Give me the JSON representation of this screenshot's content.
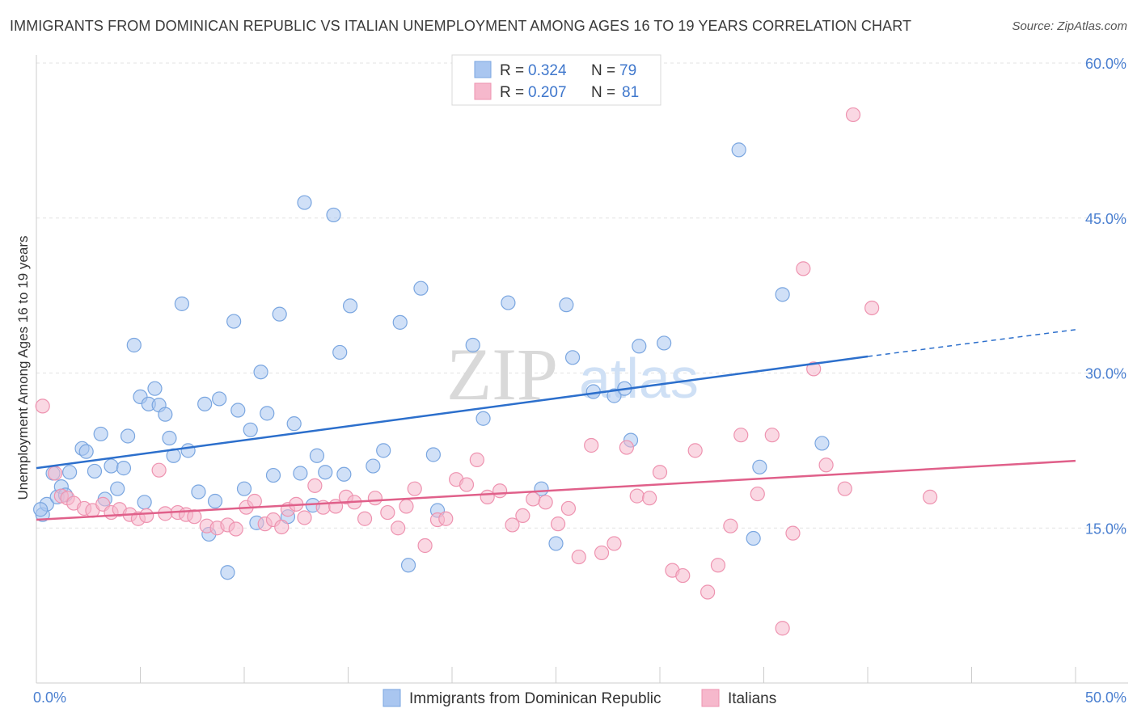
{
  "header": {
    "title": "IMMIGRANTS FROM DOMINICAN REPUBLIC VS ITALIAN UNEMPLOYMENT AMONG AGES 16 TO 19 YEARS CORRELATION CHART",
    "source": "Source: ZipAtlas.com"
  },
  "watermark": {
    "zip": "ZIP",
    "atlas": "atlas"
  },
  "legend": {
    "rows": [
      {
        "r_label": "R =",
        "r_value": "0.324",
        "n_label": "N =",
        "n_value": "79",
        "color": "#a9c6f0"
      },
      {
        "r_label": "R =",
        "r_value": "0.207",
        "n_label": "N =",
        "n_value": "81",
        "color": "#f6b8cc"
      }
    ]
  },
  "chart_data": {
    "type": "scatter",
    "title": "IMMIGRANTS FROM DOMINICAN REPUBLIC VS ITALIAN UNEMPLOYMENT AMONG AGES 16 TO 19 YEARS CORRELATION CHART",
    "xlabel": "",
    "ylabel": "Unemployment Among Ages 16 to 19 years",
    "xlim": [
      0,
      50
    ],
    "ylim": [
      0,
      60
    ],
    "x_tick_labels": [
      "0.0%",
      "50.0%"
    ],
    "y_ticks": [
      15,
      30,
      45,
      60
    ],
    "y_tick_labels": [
      "15.0%",
      "30.0%",
      "45.0%",
      "60.0%"
    ],
    "grid": true,
    "legend_position": "top-center",
    "series": [
      {
        "name": "Immigrants from Dominican Republic",
        "color": "#a9c6f0",
        "stroke": "#7aa6e0",
        "trend_color": "#2c6fcc",
        "trend": {
          "x0": 0,
          "y0": 20.8,
          "x1": 40,
          "y1": 31.6,
          "dashed_to_x": 50,
          "dashed_to_y": 34.2
        },
        "points": [
          [
            0.3,
            16.3
          ],
          [
            0.5,
            17.3
          ],
          [
            0.8,
            20.3
          ],
          [
            1.0,
            18.0
          ],
          [
            1.2,
            19.0
          ],
          [
            1.4,
            18.2
          ],
          [
            2.2,
            22.7
          ],
          [
            2.4,
            22.4
          ],
          [
            2.8,
            20.5
          ],
          [
            3.1,
            24.1
          ],
          [
            3.3,
            17.8
          ],
          [
            3.6,
            21.0
          ],
          [
            3.9,
            18.8
          ],
          [
            4.2,
            20.8
          ],
          [
            4.4,
            23.9
          ],
          [
            4.7,
            32.7
          ],
          [
            5.0,
            27.7
          ],
          [
            5.2,
            17.5
          ],
          [
            5.4,
            27.0
          ],
          [
            5.7,
            28.5
          ],
          [
            5.9,
            26.9
          ],
          [
            6.2,
            26.0
          ],
          [
            6.4,
            23.7
          ],
          [
            6.6,
            22.0
          ],
          [
            7.0,
            36.7
          ],
          [
            7.3,
            22.5
          ],
          [
            7.8,
            18.5
          ],
          [
            8.1,
            27.0
          ],
          [
            8.3,
            14.4
          ],
          [
            8.6,
            17.6
          ],
          [
            8.8,
            27.5
          ],
          [
            9.2,
            10.7
          ],
          [
            9.5,
            35.0
          ],
          [
            9.7,
            26.4
          ],
          [
            10.0,
            18.8
          ],
          [
            10.3,
            24.5
          ],
          [
            10.6,
            15.5
          ],
          [
            10.8,
            30.1
          ],
          [
            11.1,
            26.1
          ],
          [
            11.4,
            20.1
          ],
          [
            11.7,
            35.7
          ],
          [
            12.1,
            16.1
          ],
          [
            12.4,
            25.1
          ],
          [
            12.7,
            20.3
          ],
          [
            12.9,
            46.5
          ],
          [
            13.3,
            17.2
          ],
          [
            13.5,
            22.0
          ],
          [
            13.9,
            20.4
          ],
          [
            14.3,
            45.3
          ],
          [
            14.6,
            32.0
          ],
          [
            14.8,
            20.2
          ],
          [
            15.1,
            36.5
          ],
          [
            16.2,
            21.0
          ],
          [
            16.7,
            22.5
          ],
          [
            17.5,
            34.9
          ],
          [
            17.9,
            11.4
          ],
          [
            18.5,
            38.2
          ],
          [
            19.1,
            22.1
          ],
          [
            19.3,
            16.7
          ],
          [
            21.0,
            32.7
          ],
          [
            21.5,
            25.6
          ],
          [
            22.7,
            36.8
          ],
          [
            24.3,
            18.8
          ],
          [
            25.0,
            13.5
          ],
          [
            25.5,
            36.6
          ],
          [
            25.8,
            31.5
          ],
          [
            26.8,
            28.2
          ],
          [
            27.8,
            27.8
          ],
          [
            28.3,
            28.5
          ],
          [
            28.6,
            23.5
          ],
          [
            29.0,
            32.6
          ],
          [
            30.2,
            32.9
          ],
          [
            33.8,
            51.6
          ],
          [
            34.5,
            14.0
          ],
          [
            34.8,
            20.9
          ],
          [
            35.9,
            37.6
          ],
          [
            37.8,
            23.2
          ],
          [
            0.2,
            16.8
          ],
          [
            1.6,
            20.4
          ]
        ]
      },
      {
        "name": "Italians",
        "color": "#f6b8cc",
        "stroke": "#ee93b0",
        "trend_color": "#e0608a",
        "trend": {
          "x0": 0,
          "y0": 15.8,
          "x1": 50,
          "y1": 21.5
        },
        "points": [
          [
            0.3,
            26.8
          ],
          [
            0.9,
            20.3
          ],
          [
            1.2,
            18.1
          ],
          [
            1.5,
            17.9
          ],
          [
            1.8,
            17.4
          ],
          [
            2.3,
            16.9
          ],
          [
            2.7,
            16.7
          ],
          [
            3.2,
            17.3
          ],
          [
            3.6,
            16.5
          ],
          [
            4.0,
            16.8
          ],
          [
            4.5,
            16.3
          ],
          [
            4.9,
            15.9
          ],
          [
            5.3,
            16.2
          ],
          [
            5.9,
            20.6
          ],
          [
            6.2,
            16.4
          ],
          [
            6.8,
            16.5
          ],
          [
            7.2,
            16.3
          ],
          [
            7.6,
            16.1
          ],
          [
            8.2,
            15.2
          ],
          [
            8.7,
            15.0
          ],
          [
            9.2,
            15.3
          ],
          [
            9.6,
            14.9
          ],
          [
            10.1,
            17.0
          ],
          [
            10.5,
            17.6
          ],
          [
            11.0,
            15.4
          ],
          [
            11.4,
            15.8
          ],
          [
            11.8,
            15.1
          ],
          [
            12.1,
            16.8
          ],
          [
            12.5,
            17.3
          ],
          [
            12.9,
            16.0
          ],
          [
            13.4,
            19.1
          ],
          [
            13.8,
            17.0
          ],
          [
            14.4,
            17.1
          ],
          [
            14.9,
            18.0
          ],
          [
            15.3,
            17.5
          ],
          [
            15.8,
            15.9
          ],
          [
            16.3,
            17.9
          ],
          [
            16.9,
            16.5
          ],
          [
            17.4,
            15.0
          ],
          [
            17.8,
            17.1
          ],
          [
            18.2,
            18.8
          ],
          [
            18.7,
            13.3
          ],
          [
            19.3,
            15.8
          ],
          [
            19.7,
            15.9
          ],
          [
            20.2,
            19.7
          ],
          [
            20.7,
            19.2
          ],
          [
            21.2,
            21.6
          ],
          [
            21.7,
            18.0
          ],
          [
            22.3,
            18.6
          ],
          [
            22.9,
            15.3
          ],
          [
            23.4,
            16.2
          ],
          [
            23.9,
            17.8
          ],
          [
            24.5,
            17.5
          ],
          [
            25.1,
            15.4
          ],
          [
            25.6,
            16.9
          ],
          [
            26.1,
            12.2
          ],
          [
            26.7,
            23.0
          ],
          [
            27.2,
            12.6
          ],
          [
            27.8,
            13.5
          ],
          [
            28.4,
            22.8
          ],
          [
            28.9,
            18.1
          ],
          [
            29.5,
            17.9
          ],
          [
            30.0,
            20.4
          ],
          [
            30.6,
            10.9
          ],
          [
            31.1,
            10.4
          ],
          [
            31.7,
            22.5
          ],
          [
            32.3,
            8.8
          ],
          [
            32.8,
            11.4
          ],
          [
            33.4,
            15.2
          ],
          [
            33.9,
            24.0
          ],
          [
            34.7,
            18.3
          ],
          [
            35.4,
            24.0
          ],
          [
            35.9,
            5.3
          ],
          [
            36.4,
            14.5
          ],
          [
            36.9,
            40.1
          ],
          [
            37.4,
            30.4
          ],
          [
            38.0,
            21.1
          ],
          [
            38.9,
            18.8
          ],
          [
            39.3,
            55.0
          ],
          [
            40.2,
            36.3
          ],
          [
            43.0,
            18.0
          ]
        ]
      }
    ]
  },
  "bottom_legend": {
    "items": [
      {
        "label": "Immigrants from Dominican Republic",
        "color": "#a9c6f0"
      },
      {
        "label": "Italians",
        "color": "#f6b8cc"
      }
    ]
  }
}
